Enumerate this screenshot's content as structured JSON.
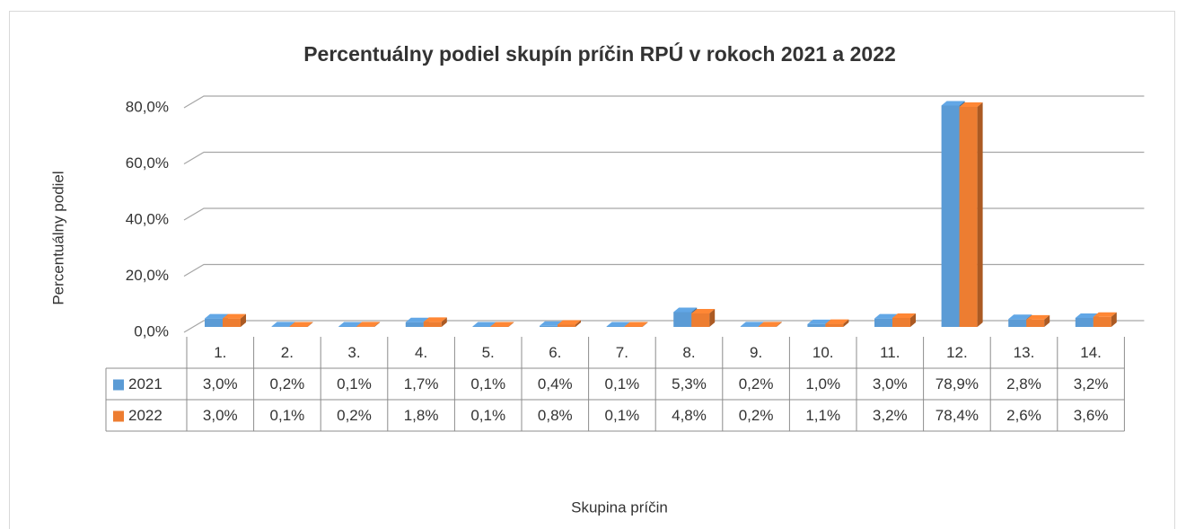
{
  "chart_data": {
    "type": "bar3d",
    "title": "Percentuálny podiel skupín príčin RPÚ v rokoch 2021 a 2022",
    "y_label": "Percentuálny podiel",
    "x_label": "Skupina príčin",
    "categories": [
      "1.",
      "2.",
      "3.",
      "4.",
      "5.",
      "6.",
      "7.",
      "8.",
      "9.",
      "10.",
      "11.",
      "12.",
      "13.",
      "14."
    ],
    "series": [
      {
        "name": "2021",
        "color": "#5b9bd5",
        "values": [
          3.0,
          0.2,
          0.1,
          1.7,
          0.1,
          0.4,
          0.1,
          5.3,
          0.2,
          1.0,
          3.0,
          78.9,
          2.8,
          3.2
        ],
        "value_labels": [
          "3,0%",
          "0,2%",
          "0,1%",
          "1,7%",
          "0,1%",
          "0,4%",
          "0,1%",
          "5,3%",
          "0,2%",
          "1,0%",
          "3,0%",
          "78,9%",
          "2,8%",
          "3,2%"
        ]
      },
      {
        "name": "2022",
        "color": "#ed7d31",
        "values": [
          3.0,
          0.1,
          0.2,
          1.8,
          0.1,
          0.8,
          0.1,
          4.8,
          0.2,
          1.1,
          3.2,
          78.4,
          2.6,
          3.6
        ],
        "value_labels": [
          "3,0%",
          "0,1%",
          "0,2%",
          "1,8%",
          "0,1%",
          "0,8%",
          "0,1%",
          "4,8%",
          "0,2%",
          "1,1%",
          "3,2%",
          "78,4%",
          "2,6%",
          "3,6%"
        ]
      }
    ],
    "ylim": [
      0,
      80
    ],
    "yticks": [
      {
        "value": 0,
        "label": "0,0%"
      },
      {
        "value": 20,
        "label": "20,0%"
      },
      {
        "value": 40,
        "label": "40,0%"
      },
      {
        "value": 60,
        "label": "60,0%"
      },
      {
        "value": 80,
        "label": "80,0%"
      }
    ],
    "grid": true,
    "data_table": true
  }
}
